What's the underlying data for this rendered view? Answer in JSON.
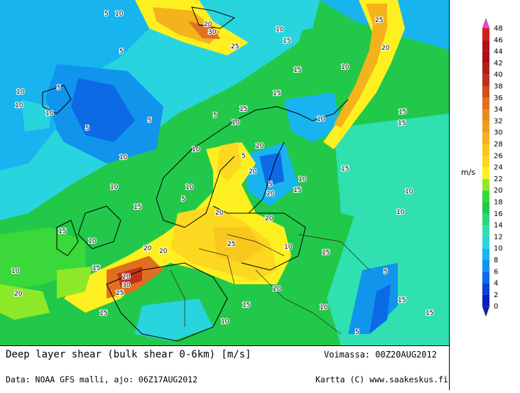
{
  "map": {
    "title": "Deep layer shear (bulk shear 0-6km) [m/s]",
    "valid": "Voimassa: 00Z20AUG2012",
    "source": "Data: NOAA GFS malli, ajo: 06Z17AUG2012",
    "credit": "Kartta (C) www.saakeskus.fi"
  },
  "legend": {
    "unit": "m/s",
    "levels": [
      {
        "label": "48",
        "color": "#ff3fc8"
      },
      {
        "label": "46",
        "color": "#d11f1f"
      },
      {
        "label": "44",
        "color": "#b5101a"
      },
      {
        "label": "42",
        "color": "#a7101a"
      },
      {
        "label": "40",
        "color": "#b0201a"
      },
      {
        "label": "38",
        "color": "#c0301c"
      },
      {
        "label": "36",
        "color": "#d0501e"
      },
      {
        "label": "34",
        "color": "#e07020"
      },
      {
        "label": "32",
        "color": "#e88a1e"
      },
      {
        "label": "30",
        "color": "#ee9c1c"
      },
      {
        "label": "28",
        "color": "#f4b21c"
      },
      {
        "label": "26",
        "color": "#f8c81e"
      },
      {
        "label": "24",
        "color": "#fcd820"
      },
      {
        "label": "22",
        "color": "#fef020"
      },
      {
        "label": "20",
        "color": "#8ee82a"
      },
      {
        "label": "18",
        "color": "#3ad83a"
      },
      {
        "label": "16",
        "color": "#22c84a"
      },
      {
        "label": "14",
        "color": "#2cd67a"
      },
      {
        "label": "12",
        "color": "#30e0b0"
      },
      {
        "label": "10",
        "color": "#28d4de"
      },
      {
        "label": "8",
        "color": "#18b4f0"
      },
      {
        "label": "6",
        "color": "#1094ec"
      },
      {
        "label": "4",
        "color": "#0c6ae4"
      },
      {
        "label": "2",
        "color": "#0842d8"
      },
      {
        "label": "0",
        "color": "#0620c0"
      }
    ]
  },
  "contour_labels": [
    {
      "t": "5"
    },
    {
      "t": "10"
    },
    {
      "t": "20"
    },
    {
      "t": "30"
    },
    {
      "t": "25"
    },
    {
      "t": "15"
    },
    {
      "t": "10"
    },
    {
      "t": "25"
    },
    {
      "t": "20"
    },
    {
      "t": "5"
    },
    {
      "t": "15"
    },
    {
      "t": "10"
    },
    {
      "t": "15"
    },
    {
      "t": "10"
    },
    {
      "t": "10"
    },
    {
      "t": "5"
    },
    {
      "t": "10"
    },
    {
      "t": "5"
    },
    {
      "t": "15"
    },
    {
      "t": "10"
    },
    {
      "t": "15"
    },
    {
      "t": "15"
    },
    {
      "t": "10"
    },
    {
      "t": "5"
    },
    {
      "t": "5"
    },
    {
      "t": "20"
    },
    {
      "t": "10"
    },
    {
      "t": "15"
    },
    {
      "t": "20"
    },
    {
      "t": "20"
    },
    {
      "t": "10"
    },
    {
      "t": "15"
    },
    {
      "t": "10"
    },
    {
      "t": "5"
    },
    {
      "t": "10"
    },
    {
      "t": "5"
    },
    {
      "t": "10"
    },
    {
      "t": "15"
    },
    {
      "t": "10"
    },
    {
      "t": "15"
    },
    {
      "t": "5"
    },
    {
      "t": "20"
    },
    {
      "t": "15"
    },
    {
      "t": "20"
    },
    {
      "t": "10"
    },
    {
      "t": "20"
    },
    {
      "t": "25"
    },
    {
      "t": "20"
    },
    {
      "t": "15"
    },
    {
      "t": "10"
    },
    {
      "t": "20"
    },
    {
      "t": "20"
    },
    {
      "t": "30"
    },
    {
      "t": "25"
    },
    {
      "t": "10"
    },
    {
      "t": "15"
    },
    {
      "t": "20"
    },
    {
      "t": "15"
    },
    {
      "t": "10"
    },
    {
      "t": "15"
    },
    {
      "t": "5"
    },
    {
      "t": "10"
    },
    {
      "t": "15"
    },
    {
      "t": "10"
    },
    {
      "t": "5"
    }
  ]
}
